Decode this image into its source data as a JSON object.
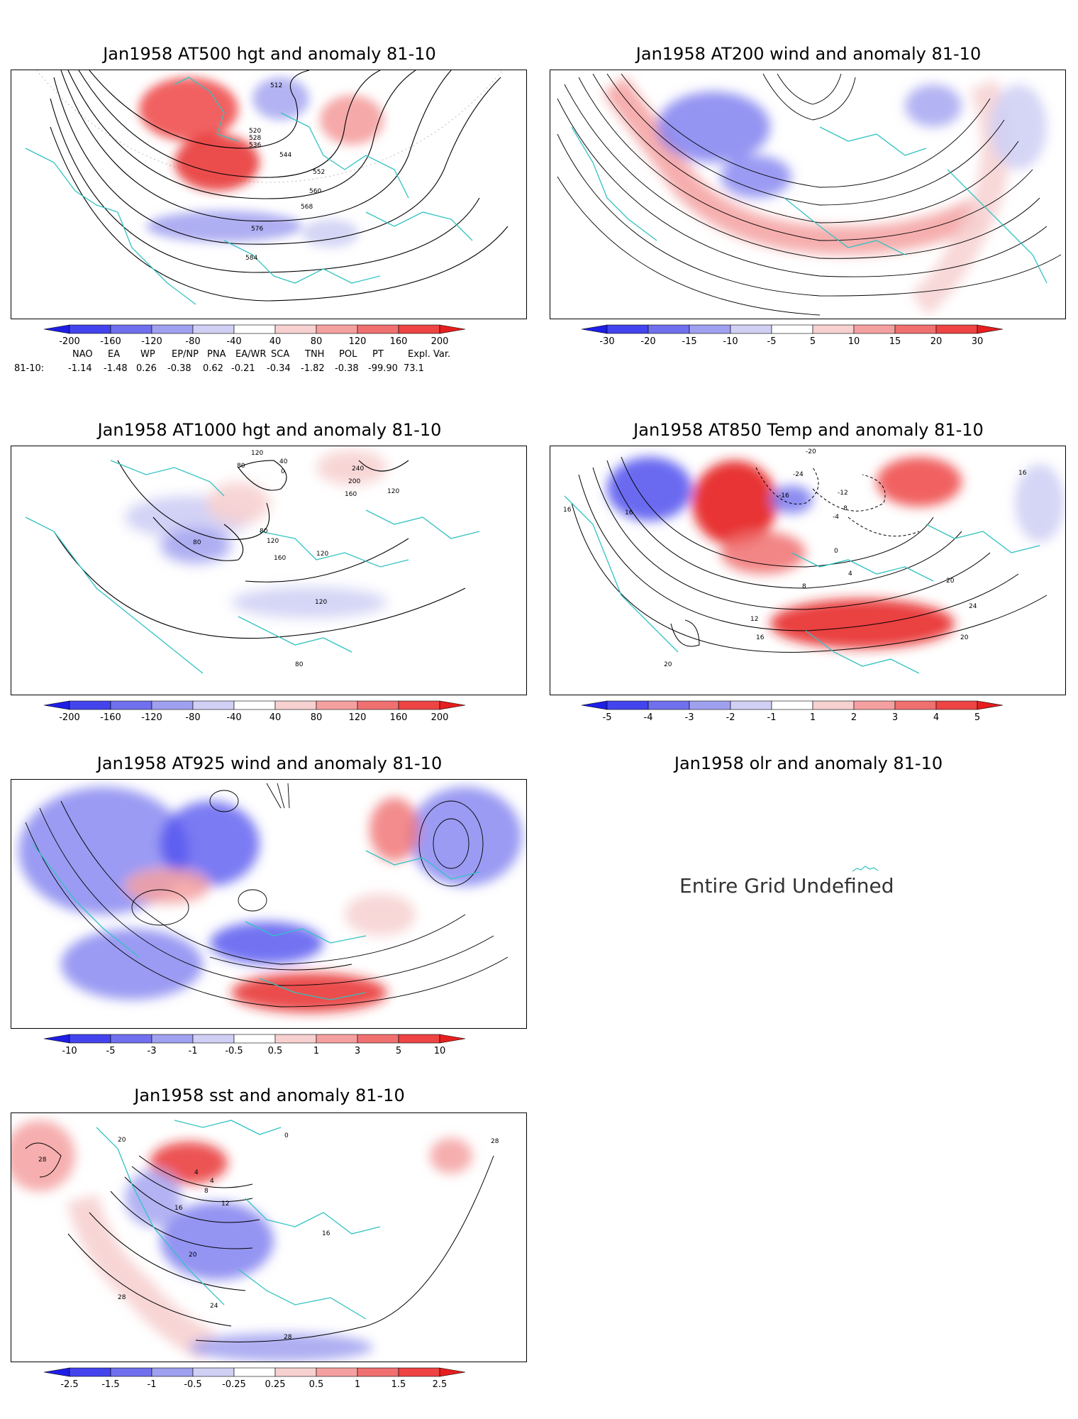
{
  "panels": [
    {
      "id": "p500",
      "title": "Jan1958 AT500 hgt and anomaly 81-10",
      "contour_labels": [
        "512",
        "520",
        "528",
        "536",
        "544",
        "552",
        "560",
        "568",
        "576",
        "584"
      ],
      "colorbar": {
        "labels": [
          "-200",
          "-160",
          "-120",
          "-80",
          "-40",
          "40",
          "80",
          "120",
          "160",
          "200"
        ]
      }
    },
    {
      "id": "p200",
      "title": "Jan1958 AT200 wind and anomaly 81-10",
      "colorbar": {
        "labels": [
          "-30",
          "-20",
          "-15",
          "-10",
          "-5",
          "5",
          "10",
          "15",
          "20",
          "30"
        ]
      }
    },
    {
      "id": "p1000",
      "title": "Jan1958 AT1000 hgt and anomaly 81-10",
      "contour_labels": [
        "120",
        "80",
        "40",
        "0",
        "240",
        "200",
        "160",
        "120",
        "80",
        "120",
        "160",
        "120",
        "80",
        "120",
        "80"
      ],
      "colorbar": {
        "labels": [
          "-200",
          "-160",
          "-120",
          "-80",
          "-40",
          "40",
          "80",
          "120",
          "160",
          "200"
        ]
      }
    },
    {
      "id": "p850",
      "title": "Jan1958 AT850 Temp and anomaly 81-10",
      "contour_labels": [
        "-20",
        "-24",
        "-16",
        "-12",
        "-8",
        "-4",
        "0",
        "4",
        "8",
        "12",
        "16",
        "16",
        "16",
        "20",
        "24",
        "20",
        "20",
        "16"
      ],
      "colorbar": {
        "labels": [
          "-5",
          "-4",
          "-3",
          "-2",
          "-1",
          "1",
          "2",
          "3",
          "4",
          "5"
        ]
      }
    },
    {
      "id": "p925",
      "title": "Jan1958 AT925 wind and anomaly 81-10",
      "colorbar": {
        "labels": [
          "-10",
          "-5",
          "-3",
          "-1",
          "-0.5",
          "0.5",
          "1",
          "3",
          "5",
          "10"
        ]
      }
    },
    {
      "id": "polr",
      "title": "Jan1958 olr and anomaly 81-10",
      "message": "Entire Grid Undefined"
    },
    {
      "id": "psst",
      "title": "Jan1958 sst and anomaly 81-10",
      "contour_labels": [
        "28",
        "20",
        "4",
        "4",
        "8",
        "12",
        "16",
        "20",
        "24",
        "28",
        "28",
        "28",
        "0",
        "16"
      ],
      "colorbar": {
        "labels": [
          "-2.5",
          "-1.5",
          "-1",
          "-0.5",
          "-0.25",
          "0.25",
          "0.5",
          "1",
          "1.5",
          "2.5"
        ]
      }
    }
  ],
  "teleconnections": {
    "header": [
      "NAO",
      "EA",
      "WP",
      "EP/NP",
      "PNA",
      "EA/WR",
      "SCA",
      "TNH",
      "POL",
      "PT",
      "Expl. Var."
    ],
    "row_label": "81-10:",
    "values": [
      "-1.14",
      "-1.48",
      "0.26",
      "-0.38",
      "0.62",
      "-0.21",
      "-0.34",
      "-1.82",
      "-0.38",
      "-99.90",
      "73.1"
    ]
  },
  "colors": {
    "coast": "#33c2c2",
    "ramp": [
      "#1e1ee6",
      "#4444ee",
      "#7070ee",
      "#a0a0f0",
      "#d0d0f5",
      "#ffffff",
      "#f7d0d0",
      "#f5a0a0",
      "#f07070",
      "#ee4444",
      "#e61e1e"
    ]
  }
}
